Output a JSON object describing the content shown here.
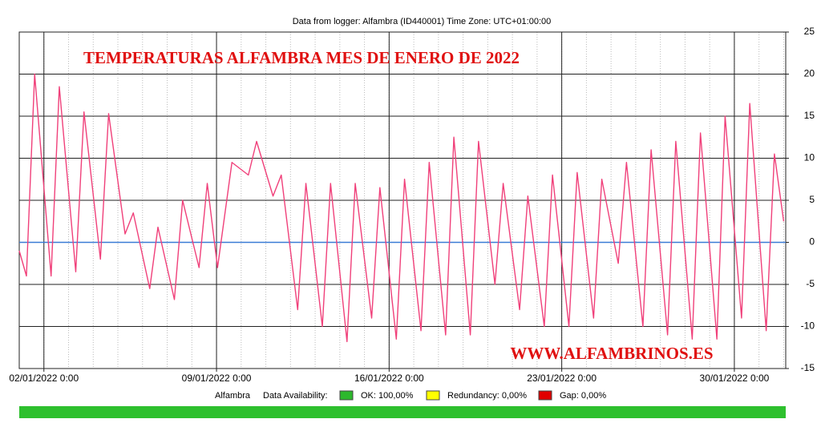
{
  "chart_data": {
    "type": "line",
    "title": "Data from logger: Alfambra (ID440001) Time Zone: UTC+01:00:00",
    "overlay_title": "TEMPERATURAS ALFAMBRA MES DE ENERO DE 2022",
    "watermark": "WWW.ALFAMBRINOS.ES",
    "legend": {
      "series_label": "Alfambra",
      "availability_label": "Data Availability:",
      "items": [
        {
          "label": "OK: 100,00%",
          "color": "#2db82d"
        },
        {
          "label": "Redundancy: 0,00%",
          "color": "#ffff00"
        },
        {
          "label": "Gap: 0,00%",
          "color": "#e00000"
        }
      ]
    },
    "x": [
      "2022-01-01 00:00",
      "2022-01-01 07:00",
      "2022-01-01 15:00",
      "2022-01-02 07:00",
      "2022-01-02 15:00",
      "2022-01-03 07:00",
      "2022-01-03 15:00",
      "2022-01-04 07:00",
      "2022-01-04 15:00",
      "2022-01-05 07:00",
      "2022-01-05 15:00",
      "2022-01-06 07:00",
      "2022-01-06 15:00",
      "2022-01-07 07:00",
      "2022-01-07 15:00",
      "2022-01-08 07:00",
      "2022-01-08 15:00",
      "2022-01-09 01:00",
      "2022-01-09 15:00",
      "2022-01-10 07:00",
      "2022-01-10 15:00",
      "2022-01-11 07:00",
      "2022-01-11 15:00",
      "2022-01-12 07:00",
      "2022-01-12 15:00",
      "2022-01-13 07:00",
      "2022-01-13 15:00",
      "2022-01-14 07:00",
      "2022-01-14 15:00",
      "2022-01-15 07:00",
      "2022-01-15 15:00",
      "2022-01-16 07:00",
      "2022-01-16 15:00",
      "2022-01-17 07:00",
      "2022-01-17 15:00",
      "2022-01-18 07:00",
      "2022-01-18 15:00",
      "2022-01-19 07:00",
      "2022-01-19 15:00",
      "2022-01-20 07:00",
      "2022-01-20 15:00",
      "2022-01-21 07:00",
      "2022-01-21 15:00",
      "2022-01-22 07:00",
      "2022-01-22 15:00",
      "2022-01-23 07:00",
      "2022-01-23 15:00",
      "2022-01-24 07:00",
      "2022-01-24 15:00",
      "2022-01-25 07:00",
      "2022-01-25 15:00",
      "2022-01-26 07:00",
      "2022-01-26 15:00",
      "2022-01-27 07:00",
      "2022-01-27 15:00",
      "2022-01-28 07:00",
      "2022-01-28 15:00",
      "2022-01-29 07:00",
      "2022-01-29 15:00",
      "2022-01-30 07:00",
      "2022-01-30 15:00",
      "2022-01-31 07:00",
      "2022-01-31 15:00",
      "2022-02-01 00:00"
    ],
    "series": [
      {
        "name": "Alfambra",
        "color": "#f0407a",
        "values": [
          -1,
          -4,
          20,
          -4,
          18.5,
          -3.5,
          15.5,
          -2,
          15.3,
          1,
          3.5,
          -5.5,
          1.8,
          -6.8,
          5,
          -3,
          7,
          -3,
          9.5,
          8,
          12,
          5.5,
          8,
          -8,
          7,
          -10,
          7,
          -11.8,
          7,
          -9,
          6.5,
          -11.5,
          7.5,
          -10.5,
          9.5,
          -11,
          12.5,
          -11,
          12,
          -5,
          7,
          -8,
          5.5,
          -10,
          8,
          -10,
          8.3,
          -9,
          7.5,
          -2.5,
          9.5,
          -10,
          11,
          -11,
          12,
          -11.5,
          13,
          -11.5,
          15,
          -9,
          16.5,
          -10.5,
          10.5,
          2.5
        ]
      }
    ],
    "xlim": [
      "2022-01-01 00:00",
      "2022-02-01 02:00"
    ],
    "xticks": [
      {
        "value": "2022-01-02 00:00",
        "label": "02/01/2022 0:00"
      },
      {
        "value": "2022-01-09 00:00",
        "label": "09/01/2022 0:00"
      },
      {
        "value": "2022-01-16 00:00",
        "label": "16/01/2022 0:00"
      },
      {
        "value": "2022-01-23 00:00",
        "label": "23/01/2022 0:00"
      },
      {
        "value": "2022-01-30 00:00",
        "label": "30/01/2022 0:00"
      }
    ],
    "ylim": [
      -15,
      25
    ],
    "yticks": [
      -15,
      -10,
      -5,
      0,
      5,
      10,
      15,
      20,
      25
    ],
    "grid": true,
    "zero_line_color": "#3a7bd5"
  }
}
